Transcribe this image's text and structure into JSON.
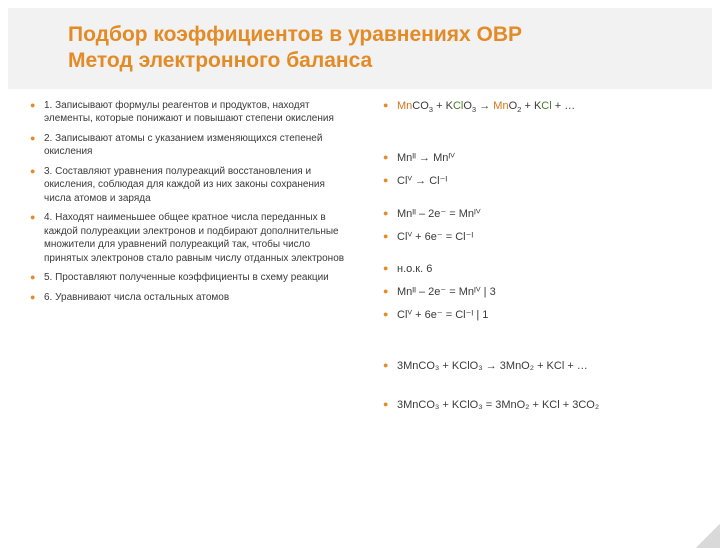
{
  "colors": {
    "accent": "#e38b27",
    "text": "#3a3a3a",
    "chem_orange": "#d9731a",
    "chem_green": "#4a7a2a",
    "title_bg": "#f2f2f2",
    "background": "#ffffff"
  },
  "title": {
    "line1": "Подбор коэффициентов в уравнениях ОВР",
    "line2": "Метод электронного баланса"
  },
  "left_steps": [
    "1. Записывают формулы реагентов и продуктов, находят элементы, которые понижают и повышают степени окисления",
    "2. Записывают атомы с указанием изменяющихся степеней окисления",
    "3. Составляют уравнения полуреакций восстановления и окисления, соблюдая для каждой из них законы сохранения числа атомов и заряда",
    "4. Находят наименьшее общее кратное  числа переданных в каждой полуреакции электронов и подбирают дополнительные множители для уравнений полуреакций так, чтобы число принятых электронов стало равным числу отданных электронов",
    "5. Проставляют полученные коэффициенты в схему реакции",
    "6. Уравнивают числа остальных атомов"
  ],
  "right_items": [
    {
      "type": "chem1",
      "parts": [
        "Mn",
        "CO",
        "3",
        " + K",
        "Cl",
        "O",
        "3",
        " → ",
        "Mn",
        "O",
        "2",
        " + K",
        "Cl",
        " + …"
      ]
    },
    {
      "type": "spacer",
      "size": "lg"
    },
    {
      "type": "plain",
      "text": "Mnᴵᴵ → Mnᴵⱽ"
    },
    {
      "type": "plain",
      "text": "Clⱽ → Cl⁻ᴵ"
    },
    {
      "type": "spacer",
      "size": "sm"
    },
    {
      "type": "plain",
      "text": "Mnᴵᴵ – 2e⁻ = Mnᴵⱽ"
    },
    {
      "type": "plain",
      "text": "Clⱽ + 6e⁻ = Cl⁻ᴵ"
    },
    {
      "type": "spacer",
      "size": "sm"
    },
    {
      "type": "plain",
      "text": "н.о.к. 6"
    },
    {
      "type": "plain",
      "text": "Mnᴵᴵ – 2e⁻ = Mnᴵⱽ    | 3"
    },
    {
      "type": "plain",
      "text": "Clⱽ + 6e⁻ = Cl⁻ᴵ       | 1"
    },
    {
      "type": "spacer",
      "size": "lg"
    },
    {
      "type": "chem2",
      "text": "3MnCO₃ + KClO₃ → 3MnO₂ + KCl +  …"
    },
    {
      "type": "spacer",
      "size": "md"
    },
    {
      "type": "chem2",
      "text": "3MnCO₃ + KClO₃ = 3MnO₂ + KCl + 3CO₂"
    }
  ]
}
